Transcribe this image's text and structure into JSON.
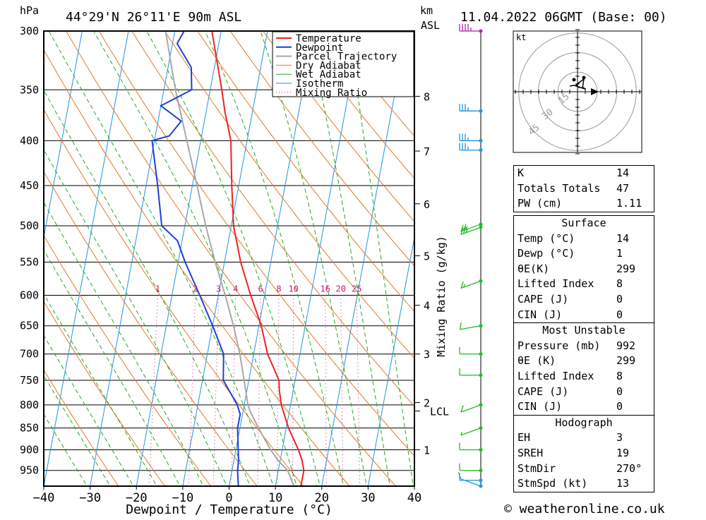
{
  "header": {
    "pressure_unit": "hPa",
    "location": "44°29'N 26°11'E 90m ASL",
    "height_unit_km": "km",
    "height_unit_asl": "ASL",
    "datetime": "11.04.2022 06GMT (Base: 00)"
  },
  "footer": {
    "copyright": "© weatheronline.co.uk"
  },
  "colors": {
    "temperature": "#ee2222",
    "dewpoint": "#1f3fd8",
    "parcel": "#a8a8a8",
    "dry_adiabat": "#e07b2a",
    "wet_adiabat": "#22aa22",
    "isotherm": "#1e96e0",
    "mixing_ratio": "#d4146e",
    "wind": "#22bb22",
    "wind_upper": "#1e96e0",
    "wind_top": "#aa22aa"
  },
  "chart_data": {
    "type": "line",
    "title": "44°29'N 26°11'E 90m ASL",
    "xlabel": "Dewpoint / Temperature (°C)",
    "ylabel": "hPa",
    "secondary_ylabel": "Mixing Ratio (g/kg)",
    "xlim": [
      -40,
      40
    ],
    "ylim": [
      300,
      990
    ],
    "grid": true,
    "legend_position": "top-right",
    "x_ticks": [
      "−40",
      "−30",
      "−20",
      "−10",
      "0",
      "10",
      "20",
      "30",
      "40"
    ],
    "pressure_ticks": [
      "300",
      "350",
      "400",
      "450",
      "500",
      "550",
      "600",
      "650",
      "700",
      "750",
      "800",
      "850",
      "900",
      "950"
    ],
    "height_ticks_km": [
      "8",
      "7",
      "6",
      "5",
      "4",
      "3",
      "2",
      "1"
    ],
    "lcl_label": "LCL",
    "mixing_ratio_labels": [
      "1",
      "2",
      "3",
      "4",
      "6",
      "8",
      "10",
      "16",
      "20",
      "25"
    ],
    "legend": [
      "Temperature",
      "Dewpoint",
      "Parcel Trajectory",
      "Dry Adiabat",
      "Wet Adiabat",
      "Isotherm",
      "Mixing Ratio"
    ],
    "series": [
      {
        "name": "Temperature",
        "points": [
          [
            990,
            15.5
          ],
          [
            950,
            15.5
          ],
          [
            925,
            14.7
          ],
          [
            900,
            13.5
          ],
          [
            850,
            10.5
          ],
          [
            800,
            8
          ],
          [
            770,
            7
          ],
          [
            750,
            6.5
          ],
          [
            700,
            3
          ],
          [
            650,
            0.5
          ],
          [
            600,
            -3
          ],
          [
            550,
            -6.5
          ],
          [
            500,
            -9.5
          ],
          [
            450,
            -11.5
          ],
          [
            400,
            -13.5
          ],
          [
            370,
            -16
          ],
          [
            350,
            -17.5
          ],
          [
            300,
            -22
          ]
        ]
      },
      {
        "name": "Dewpoint",
        "points": [
          [
            990,
            2
          ],
          [
            950,
            1.2
          ],
          [
            925,
            1
          ],
          [
            900,
            0.5
          ],
          [
            850,
            -0.5
          ],
          [
            820,
            -0.5
          ],
          [
            800,
            -1.5
          ],
          [
            750,
            -5.5
          ],
          [
            700,
            -6.5
          ],
          [
            650,
            -10
          ],
          [
            600,
            -14
          ],
          [
            550,
            -18.5
          ],
          [
            520,
            -21
          ],
          [
            500,
            -25
          ],
          [
            450,
            -27.5
          ],
          [
            400,
            -30.5
          ],
          [
            395,
            -27
          ],
          [
            380,
            -25
          ],
          [
            365,
            -30
          ],
          [
            350,
            -24
          ],
          [
            330,
            -25
          ],
          [
            310,
            -29
          ],
          [
            300,
            -28
          ]
        ]
      },
      {
        "name": "Parcel Trajectory",
        "points": [
          [
            990,
            14
          ],
          [
            950,
            12
          ],
          [
            925,
            9.5
          ],
          [
            900,
            7.5
          ],
          [
            850,
            4
          ],
          [
            813,
            1.5
          ],
          [
            800,
            0.8
          ],
          [
            750,
            -1
          ],
          [
            700,
            -3
          ],
          [
            650,
            -5.5
          ],
          [
            600,
            -8.5
          ],
          [
            550,
            -12
          ],
          [
            500,
            -15.5
          ],
          [
            450,
            -19
          ],
          [
            400,
            -23
          ],
          [
            350,
            -27.5
          ],
          [
            300,
            -32
          ]
        ]
      }
    ]
  },
  "wind_axis": {
    "rows": [
      {
        "p": 300,
        "speed": 45,
        "dir": 270,
        "color": "wind_top"
      },
      {
        "p": 370,
        "speed": 35,
        "dir": 270,
        "color": "wind_upper"
      },
      {
        "p": 400,
        "speed": 35,
        "dir": 270,
        "color": "wind_upper"
      },
      {
        "p": 410,
        "speed": 35,
        "dir": 270,
        "color": "wind_upper"
      },
      {
        "p": 498,
        "speed": 25,
        "dir": 250,
        "color": "wind"
      },
      {
        "p": 502,
        "speed": 25,
        "dir": 250,
        "color": "wind"
      },
      {
        "p": 578,
        "speed": 15,
        "dir": 250,
        "color": "wind"
      },
      {
        "p": 650,
        "speed": 10,
        "dir": 260,
        "color": "wind"
      },
      {
        "p": 700,
        "speed": 10,
        "dir": 270,
        "color": "wind"
      },
      {
        "p": 740,
        "speed": 10,
        "dir": 270,
        "color": "wind"
      },
      {
        "p": 800,
        "speed": 10,
        "dir": 250,
        "color": "wind"
      },
      {
        "p": 850,
        "speed": 5,
        "dir": 250,
        "color": "wind"
      },
      {
        "p": 900,
        "speed": 10,
        "dir": 270,
        "color": "wind"
      },
      {
        "p": 950,
        "speed": 10,
        "dir": 270,
        "color": "wind"
      },
      {
        "p": 975,
        "speed": 10,
        "dir": 270,
        "color": "wind_upper"
      },
      {
        "p": 990,
        "speed": 10,
        "dir": 290,
        "color": "wind_upper"
      }
    ]
  },
  "hodograph": {
    "unit": "kt",
    "ring_labels": [
      "15",
      "30",
      "45"
    ],
    "trace": [
      [
        0.3,
        0.6
      ],
      [
        -0.2,
        1.1
      ],
      [
        1.0,
        2.0
      ],
      [
        0.8,
        0.7
      ],
      [
        1.3,
        0.4
      ],
      [
        -0.5,
        1.0
      ],
      [
        -1.2,
        0.9
      ]
    ],
    "storm_motion": {
      "dir": 270,
      "speed": 13
    }
  },
  "indices": {
    "top": [
      {
        "label": "K",
        "value": "14"
      },
      {
        "label": "Totals Totals",
        "value": "47"
      },
      {
        "label": "PW (cm)",
        "value": "1.11"
      }
    ],
    "sections": [
      {
        "title": "Surface",
        "rows": [
          {
            "label": "Temp (°C)",
            "value": "14"
          },
          {
            "label": "Dewp (°C)",
            "value": "1"
          },
          {
            "label": "θE(K)",
            "value": "299"
          },
          {
            "label": "Lifted Index",
            "value": "8"
          },
          {
            "label": "CAPE (J)",
            "value": "0"
          },
          {
            "label": "CIN (J)",
            "value": "0"
          }
        ]
      },
      {
        "title": "Most Unstable",
        "rows": [
          {
            "label": "Pressure (mb)",
            "value": "992"
          },
          {
            "label": "θE (K)",
            "value": "299"
          },
          {
            "label": "Lifted Index",
            "value": "8"
          },
          {
            "label": "CAPE (J)",
            "value": "0"
          },
          {
            "label": "CIN (J)",
            "value": "0"
          }
        ]
      },
      {
        "title": "Hodograph",
        "rows": [
          {
            "label": "EH",
            "value": "3"
          },
          {
            "label": "SREH",
            "value": "19"
          },
          {
            "label": "StmDir",
            "value": "270°"
          },
          {
            "label": "StmSpd (kt)",
            "value": "13"
          }
        ]
      }
    ]
  }
}
